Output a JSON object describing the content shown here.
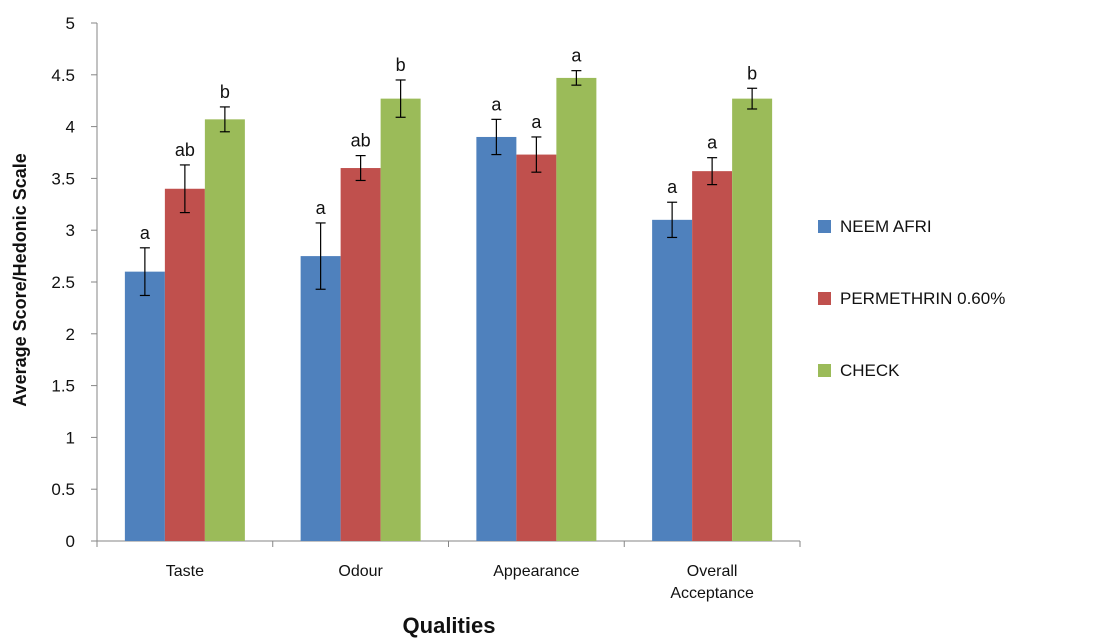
{
  "chart_data": {
    "type": "bar",
    "title": "",
    "xlabel": "Qualities",
    "ylabel": "Average Score/Hedonic Scale",
    "ylim": [
      0,
      5
    ],
    "y_ticks": [
      "0",
      "0.5",
      "1",
      "1.5",
      "2",
      "2.5",
      "3",
      "3.5",
      "4",
      "4.5",
      "5"
    ],
    "categories": [
      [
        "Taste"
      ],
      [
        "Odour"
      ],
      [
        "Appearance"
      ],
      [
        "Overall",
        "Acceptance"
      ]
    ],
    "series": [
      {
        "name": "NEEM AFRI",
        "color": "#4F81BD",
        "values": [
          2.6,
          2.75,
          3.9,
          3.1
        ],
        "errors": [
          0.23,
          0.32,
          0.17,
          0.17
        ],
        "labels": [
          "a",
          "a",
          "a",
          "a"
        ]
      },
      {
        "name": "PERMETHRIN 0.60%",
        "color": "#C0504D",
        "values": [
          3.4,
          3.6,
          3.73,
          3.57
        ],
        "errors": [
          0.23,
          0.12,
          0.17,
          0.13
        ],
        "labels": [
          "ab",
          "ab",
          "a",
          "a"
        ]
      },
      {
        "name": "CHECK",
        "color": "#9BBB59",
        "values": [
          4.07,
          4.27,
          4.47,
          4.27
        ],
        "errors": [
          0.12,
          0.18,
          0.07,
          0.1
        ],
        "labels": [
          "b",
          "b",
          "a",
          "b"
        ]
      }
    ],
    "grid": false,
    "legend_position": "right"
  }
}
